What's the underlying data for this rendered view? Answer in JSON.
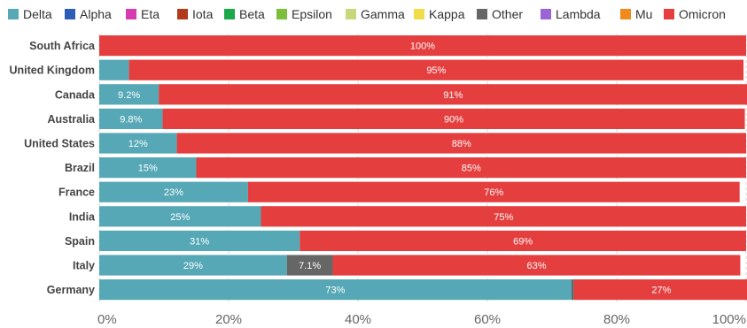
{
  "chart_data": {
    "type": "bar",
    "orientation": "horizontal",
    "stacked": true,
    "title": "",
    "xlabel": "",
    "ylabel": "",
    "xlim": [
      0,
      100
    ],
    "x_ticks": [
      "0%",
      "20%",
      "40%",
      "60%",
      "80%",
      "100%"
    ],
    "x_tick_values": [
      0,
      20,
      40,
      60,
      80,
      100
    ],
    "grid": true,
    "legend_position": "top",
    "legend": [
      {
        "name": "Delta",
        "color": "#56a8b6"
      },
      {
        "name": "Alpha",
        "color": "#2e5db8"
      },
      {
        "name": "Eta",
        "color": "#d63cb0"
      },
      {
        "name": "Iota",
        "color": "#b23a1c"
      },
      {
        "name": "Beta",
        "color": "#1aa84a"
      },
      {
        "name": "Epsilon",
        "color": "#7cbf3a"
      },
      {
        "name": "Gamma",
        "color": "#c6d87a"
      },
      {
        "name": "Kappa",
        "color": "#f1dc4a"
      },
      {
        "name": "Other",
        "color": "#666666"
      },
      {
        "name": "Lambda",
        "color": "#9b63d8"
      },
      {
        "name": "Mu",
        "color": "#f08a1c"
      },
      {
        "name": "Omicron",
        "color": "#e53e3e"
      }
    ],
    "categories": [
      "South Africa",
      "United Kingdom",
      "Canada",
      "Australia",
      "United States",
      "Brazil",
      "France",
      "India",
      "Spain",
      "Italy",
      "Germany"
    ],
    "series": [
      {
        "name": "Delta",
        "color": "#56a8b6",
        "values": [
          0,
          4.6,
          9.2,
          9.8,
          12,
          15,
          23,
          25,
          31,
          29,
          73
        ],
        "labels": [
          "",
          "",
          "9.2%",
          "9.8%",
          "12%",
          "15%",
          "23%",
          "25%",
          "31%",
          "29%",
          "73%"
        ]
      },
      {
        "name": "Other",
        "color": "#666666",
        "values": [
          0,
          0,
          0,
          0,
          0,
          0,
          0,
          0,
          0,
          7.1,
          0.4
        ],
        "labels": [
          "",
          "",
          "",
          "",
          "",
          "",
          "",
          "",
          "",
          "7.1%",
          ""
        ]
      },
      {
        "name": "Omicron",
        "color": "#e53e3e",
        "values": [
          100,
          95,
          91,
          90,
          88,
          85,
          76,
          75,
          69,
          63,
          27
        ],
        "labels": [
          "100%",
          "95%",
          "91%",
          "90%",
          "88%",
          "85%",
          "76%",
          "75%",
          "69%",
          "63%",
          "27%"
        ]
      }
    ]
  }
}
